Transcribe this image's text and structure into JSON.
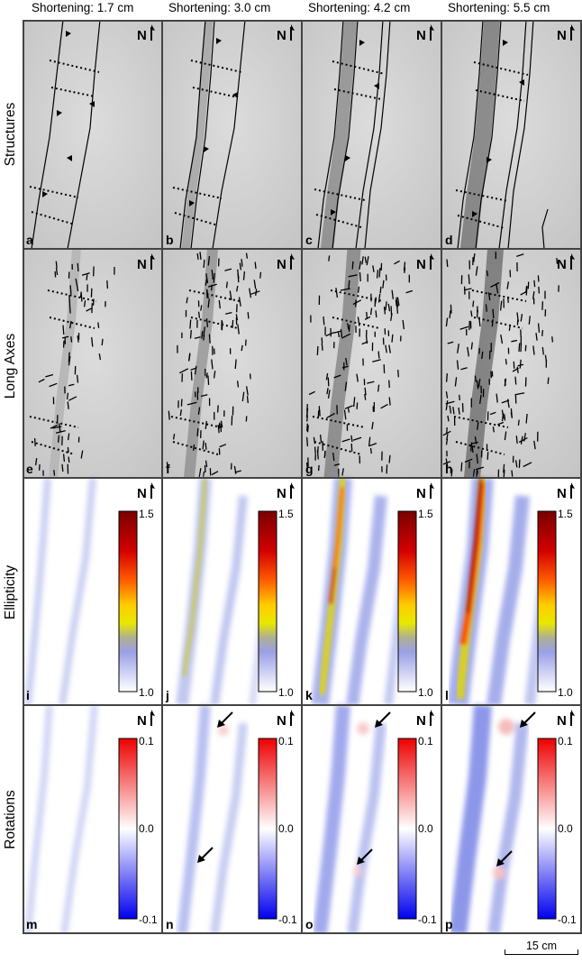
{
  "columns": [
    {
      "title": "Shortening: 1.7 cm"
    },
    {
      "title": "Shortening: 3.0 cm"
    },
    {
      "title": "Shortening: 4.2 cm"
    },
    {
      "title": "Shortening: 5.5 cm"
    }
  ],
  "rows": [
    {
      "label": "Structures",
      "panels": [
        "a",
        "b",
        "c",
        "d"
      ]
    },
    {
      "label": "Long Axes",
      "panels": [
        "e",
        "f",
        "g",
        "h"
      ]
    },
    {
      "label": "Ellipticity",
      "panels": [
        "i",
        "j",
        "k",
        "l"
      ],
      "colorbar": {
        "max": "1.5",
        "min": "1.0"
      }
    },
    {
      "label": "Rotations",
      "panels": [
        "m",
        "n",
        "o",
        "p"
      ],
      "colorbar": {
        "max": "0.1",
        "mid": "0.0",
        "min": "-0.1"
      }
    }
  ],
  "north_label": "N",
  "scale_bar": {
    "label": "15 cm"
  },
  "colors": {
    "background_photo": "#d2d2d2",
    "grid_line": "#444444",
    "ellipticity_low": "#c8cef0",
    "ellipticity_high": "#8b0000",
    "rotation_low": "#0000ee",
    "rotation_high": "#ee0000"
  },
  "icons": [
    "north-arrow-icon",
    "arrow-icon"
  ]
}
